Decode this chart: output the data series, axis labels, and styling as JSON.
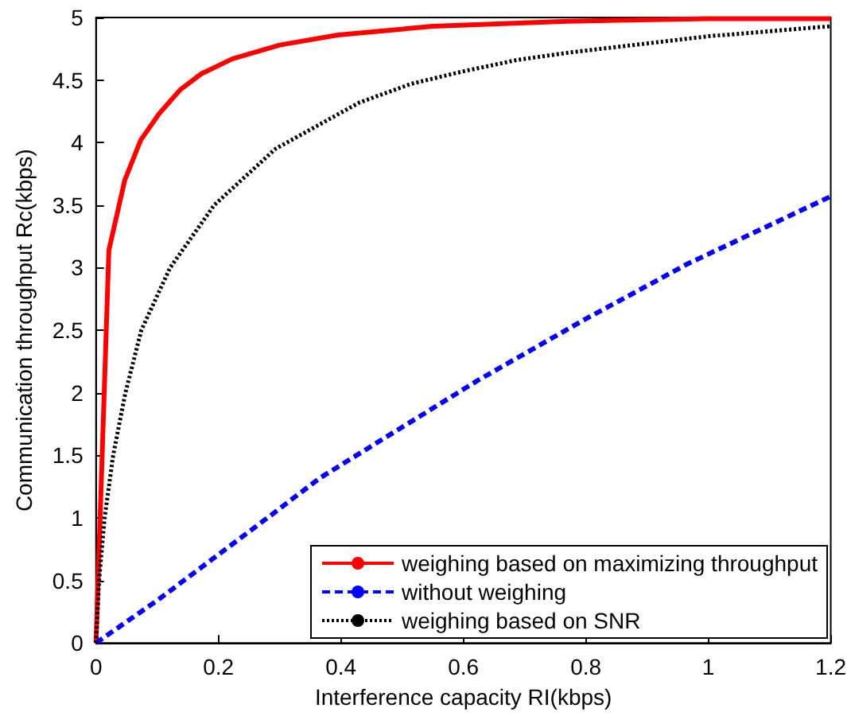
{
  "chart_data": {
    "type": "line",
    "xlabel": "Interference capacity RI(kbps)",
    "ylabel": "Communication throughput Rc(kbps)",
    "xlim": [
      0,
      1.2
    ],
    "xticks": [
      0,
      0.2,
      0.4,
      0.6,
      0.8,
      1,
      1.2
    ],
    "ylim": [
      0,
      5
    ],
    "yticks": [
      0,
      0.5,
      1,
      1.5,
      2,
      2.5,
      3,
      3.5,
      4,
      4.5,
      5
    ],
    "grid": false,
    "legend": "bottom right",
    "marker": "none",
    "series": [
      {
        "name": "weighing based on maximizing throughput",
        "color": "#ff0000",
        "line_style": "solid",
        "x": [
          0,
          0.021,
          0.047,
          0.073,
          0.103,
          0.137,
          0.172,
          0.223,
          0.3,
          0.395,
          0.55,
          0.77,
          1.0,
          1.2
        ],
        "values": [
          0,
          3.14,
          3.7,
          4.02,
          4.23,
          4.42,
          4.55,
          4.67,
          4.78,
          4.86,
          4.93,
          4.97,
          4.99,
          4.99
        ]
      },
      {
        "name": "without weighing",
        "color": "#0000ff",
        "line_style": "dashed",
        "x": [
          0,
          0.1,
          0.28,
          0.366,
          0.624,
          0.796,
          0.966,
          1.2
        ],
        "values": [
          0,
          0.34,
          1.0,
          1.32,
          2.1,
          2.58,
          3.03,
          3.57
        ]
      },
      {
        "name": "weighing based on SNR",
        "color": "#000000",
        "line_style": "dotted",
        "x": [
          0,
          0.005,
          0.014,
          0.028,
          0.048,
          0.074,
          0.121,
          0.193,
          0.293,
          0.43,
          0.515,
          0.6,
          0.687,
          0.773,
          1.0,
          1.2
        ],
        "values": [
          0,
          0.5,
          1.0,
          1.5,
          2.0,
          2.5,
          3.0,
          3.5,
          3.95,
          4.32,
          4.47,
          4.57,
          4.66,
          4.72,
          4.85,
          4.93
        ]
      }
    ]
  }
}
